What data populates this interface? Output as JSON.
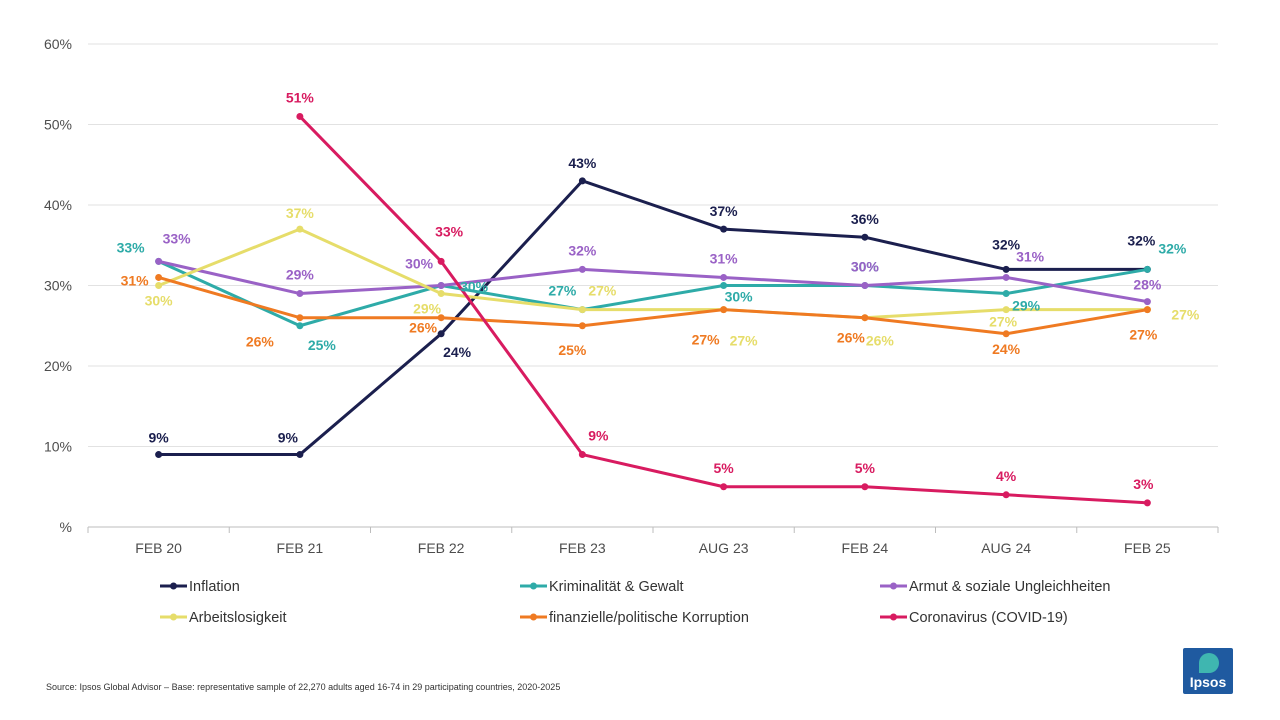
{
  "chart_data": {
    "type": "line",
    "categories": [
      "FEB 20",
      "FEB 21",
      "FEB 22",
      "FEB 23",
      "AUG 23",
      "FEB 24",
      "AUG 24",
      "FEB 25"
    ],
    "y_tick_labels": [
      "%",
      "10%",
      "20%",
      "30%",
      "40%",
      "50%",
      "60%"
    ],
    "ylim": [
      0,
      60
    ],
    "grid": true,
    "legend_position": "bottom",
    "series": [
      {
        "name": "Inflation",
        "color": "#1b1f4e",
        "values": [
          9,
          9,
          24,
          43,
          37,
          36,
          32,
          32
        ],
        "labels": [
          "9%",
          "9%",
          "24%",
          "43%",
          "37%",
          "36%",
          "32%",
          "32%"
        ]
      },
      {
        "name": "Kriminalität & Gewalt",
        "color": "#2eaba8",
        "values": [
          33,
          25,
          30,
          27,
          30,
          30,
          29,
          32
        ],
        "labels": [
          "33%",
          "25%",
          "30%",
          "27%",
          "30%",
          "30%",
          "29%",
          "32%"
        ]
      },
      {
        "name": "Armut & soziale Ungleichheiten",
        "color": "#9a62c6",
        "values": [
          33,
          29,
          30,
          32,
          31,
          30,
          31,
          28
        ],
        "labels": [
          "33%",
          "29%",
          "30%",
          "32%",
          "31%",
          "30%",
          "31%",
          "28%"
        ]
      },
      {
        "name": "Arbeitslosigkeit",
        "color": "#e6dd6a",
        "values": [
          30,
          37,
          29,
          27,
          27,
          26,
          27,
          27
        ],
        "labels": [
          "30%",
          "37%",
          "29%",
          "27%",
          "27%",
          "26%",
          "27%",
          "27%"
        ]
      },
      {
        "name": "finanzielle/politische Korruption",
        "color": "#ef7a22",
        "values": [
          31,
          26,
          26,
          25,
          27,
          26,
          24,
          27
        ],
        "labels": [
          "31%",
          "26%",
          "26%",
          "25%",
          "27%",
          "26%",
          "24%",
          "27%"
        ]
      },
      {
        "name": "Coronavirus (COVID-19)",
        "color": "#d81b60",
        "values": [
          null,
          51,
          33,
          9,
          5,
          5,
          4,
          3
        ],
        "labels": [
          null,
          "51%",
          "33%",
          "9%",
          "5%",
          "5%",
          "4%",
          "3%"
        ]
      }
    ]
  },
  "footer": {
    "source": "Source: Ipsos Global Advisor – Base: representative sample of 22,270 adults aged 16-74 in 29 participating countries, 2020-2025"
  },
  "logo": {
    "text": "Ipsos"
  }
}
